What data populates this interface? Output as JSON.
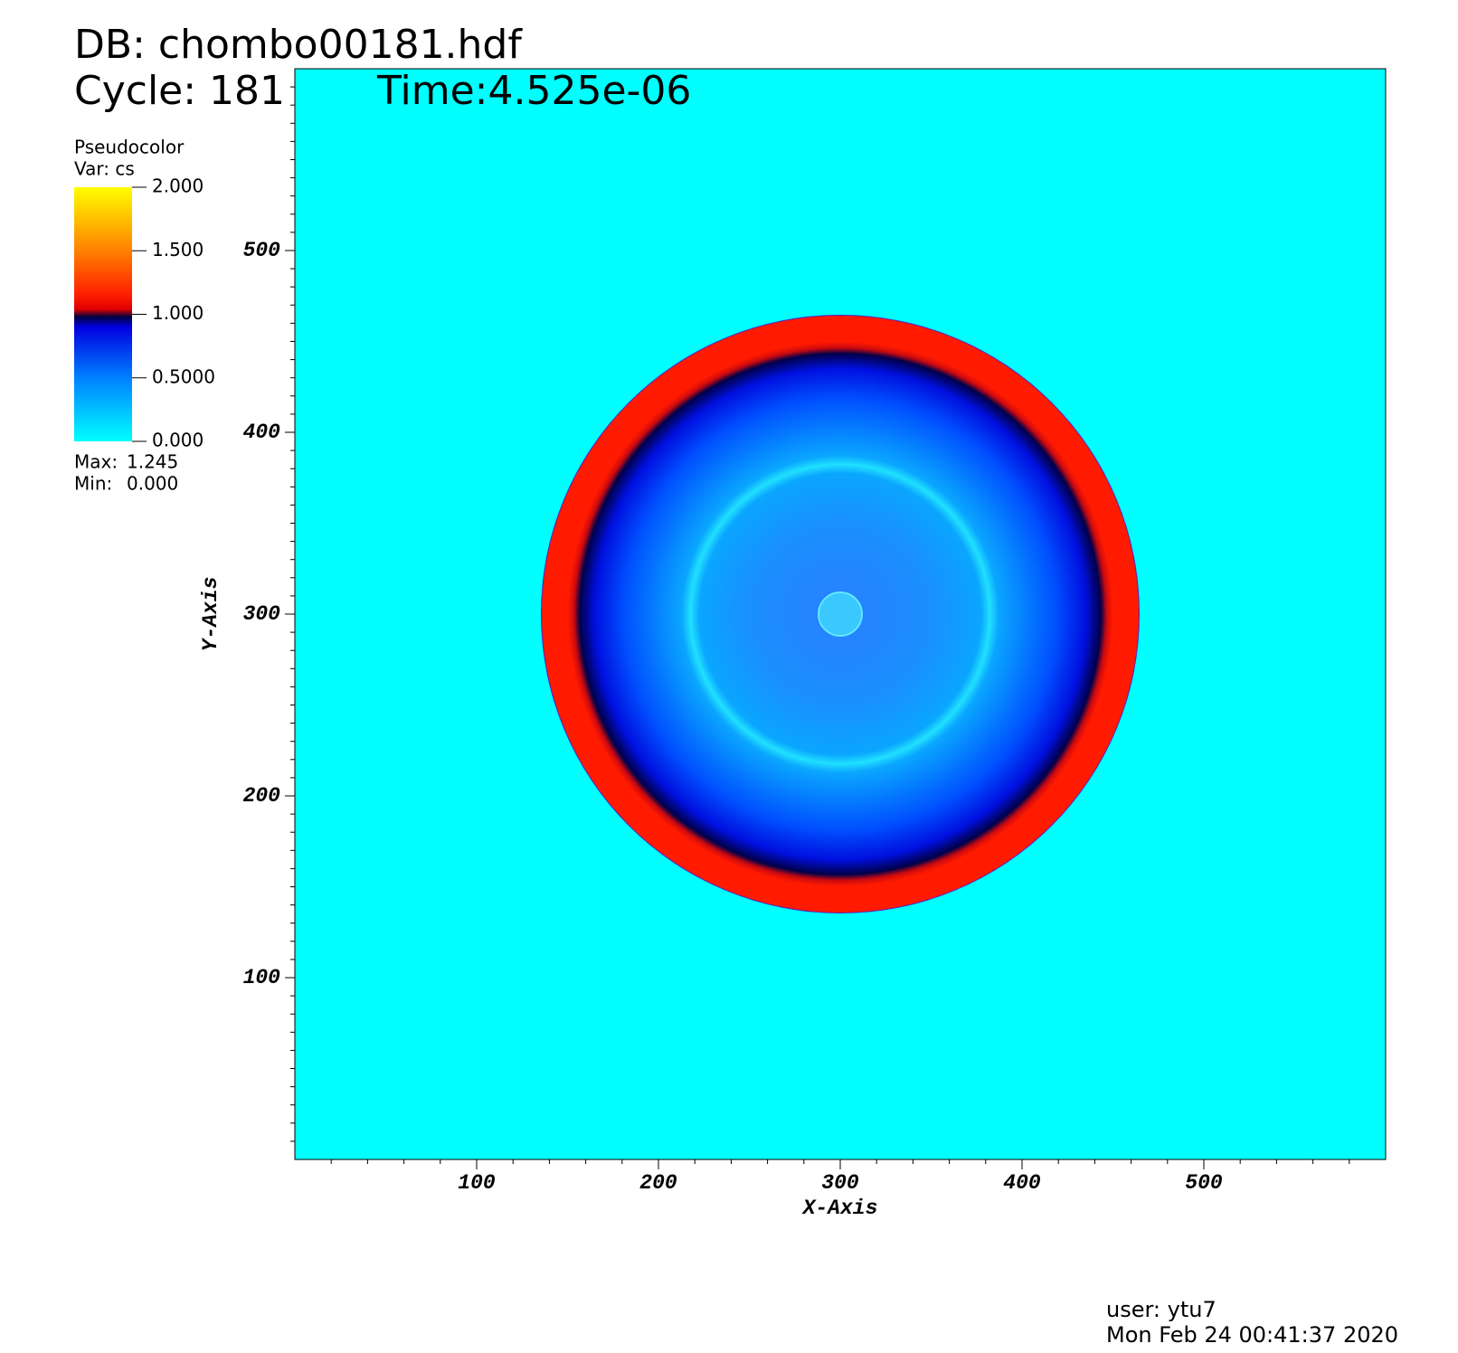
{
  "chart_data": {
    "type": "pseudocolor",
    "db_text": "DB: chombo00181.hdf",
    "cycle_text": "Cycle: 181",
    "time_text": "Time:4.525e-06",
    "x_label": "X-Axis",
    "y_label": "Y-Axis",
    "xlim": [
      0,
      600
    ],
    "ylim": [
      0,
      600
    ],
    "xticks": [
      100,
      200,
      300,
      400,
      500
    ],
    "yticks": [
      100,
      200,
      300,
      400,
      500
    ],
    "colorbar": {
      "title": "Pseudocolor",
      "var_text": "Var: cs",
      "range": [
        0,
        2
      ],
      "ticks": [
        {
          "value": 0,
          "label": "0.000"
        },
        {
          "value": 0.5,
          "label": "0.5000"
        },
        {
          "value": 1,
          "label": "1.000"
        },
        {
          "value": 1.5,
          "label": "1.500"
        },
        {
          "value": 2,
          "label": "2.000"
        }
      ],
      "max_text": "Max:",
      "max": 1.245,
      "min_text": "Min:",
      "min": {
        "value": 0,
        "label": "0.000"
      }
    },
    "user_text": "user: ytu7",
    "date_text": "Mon Feb 24 00:41:37 2020"
  }
}
